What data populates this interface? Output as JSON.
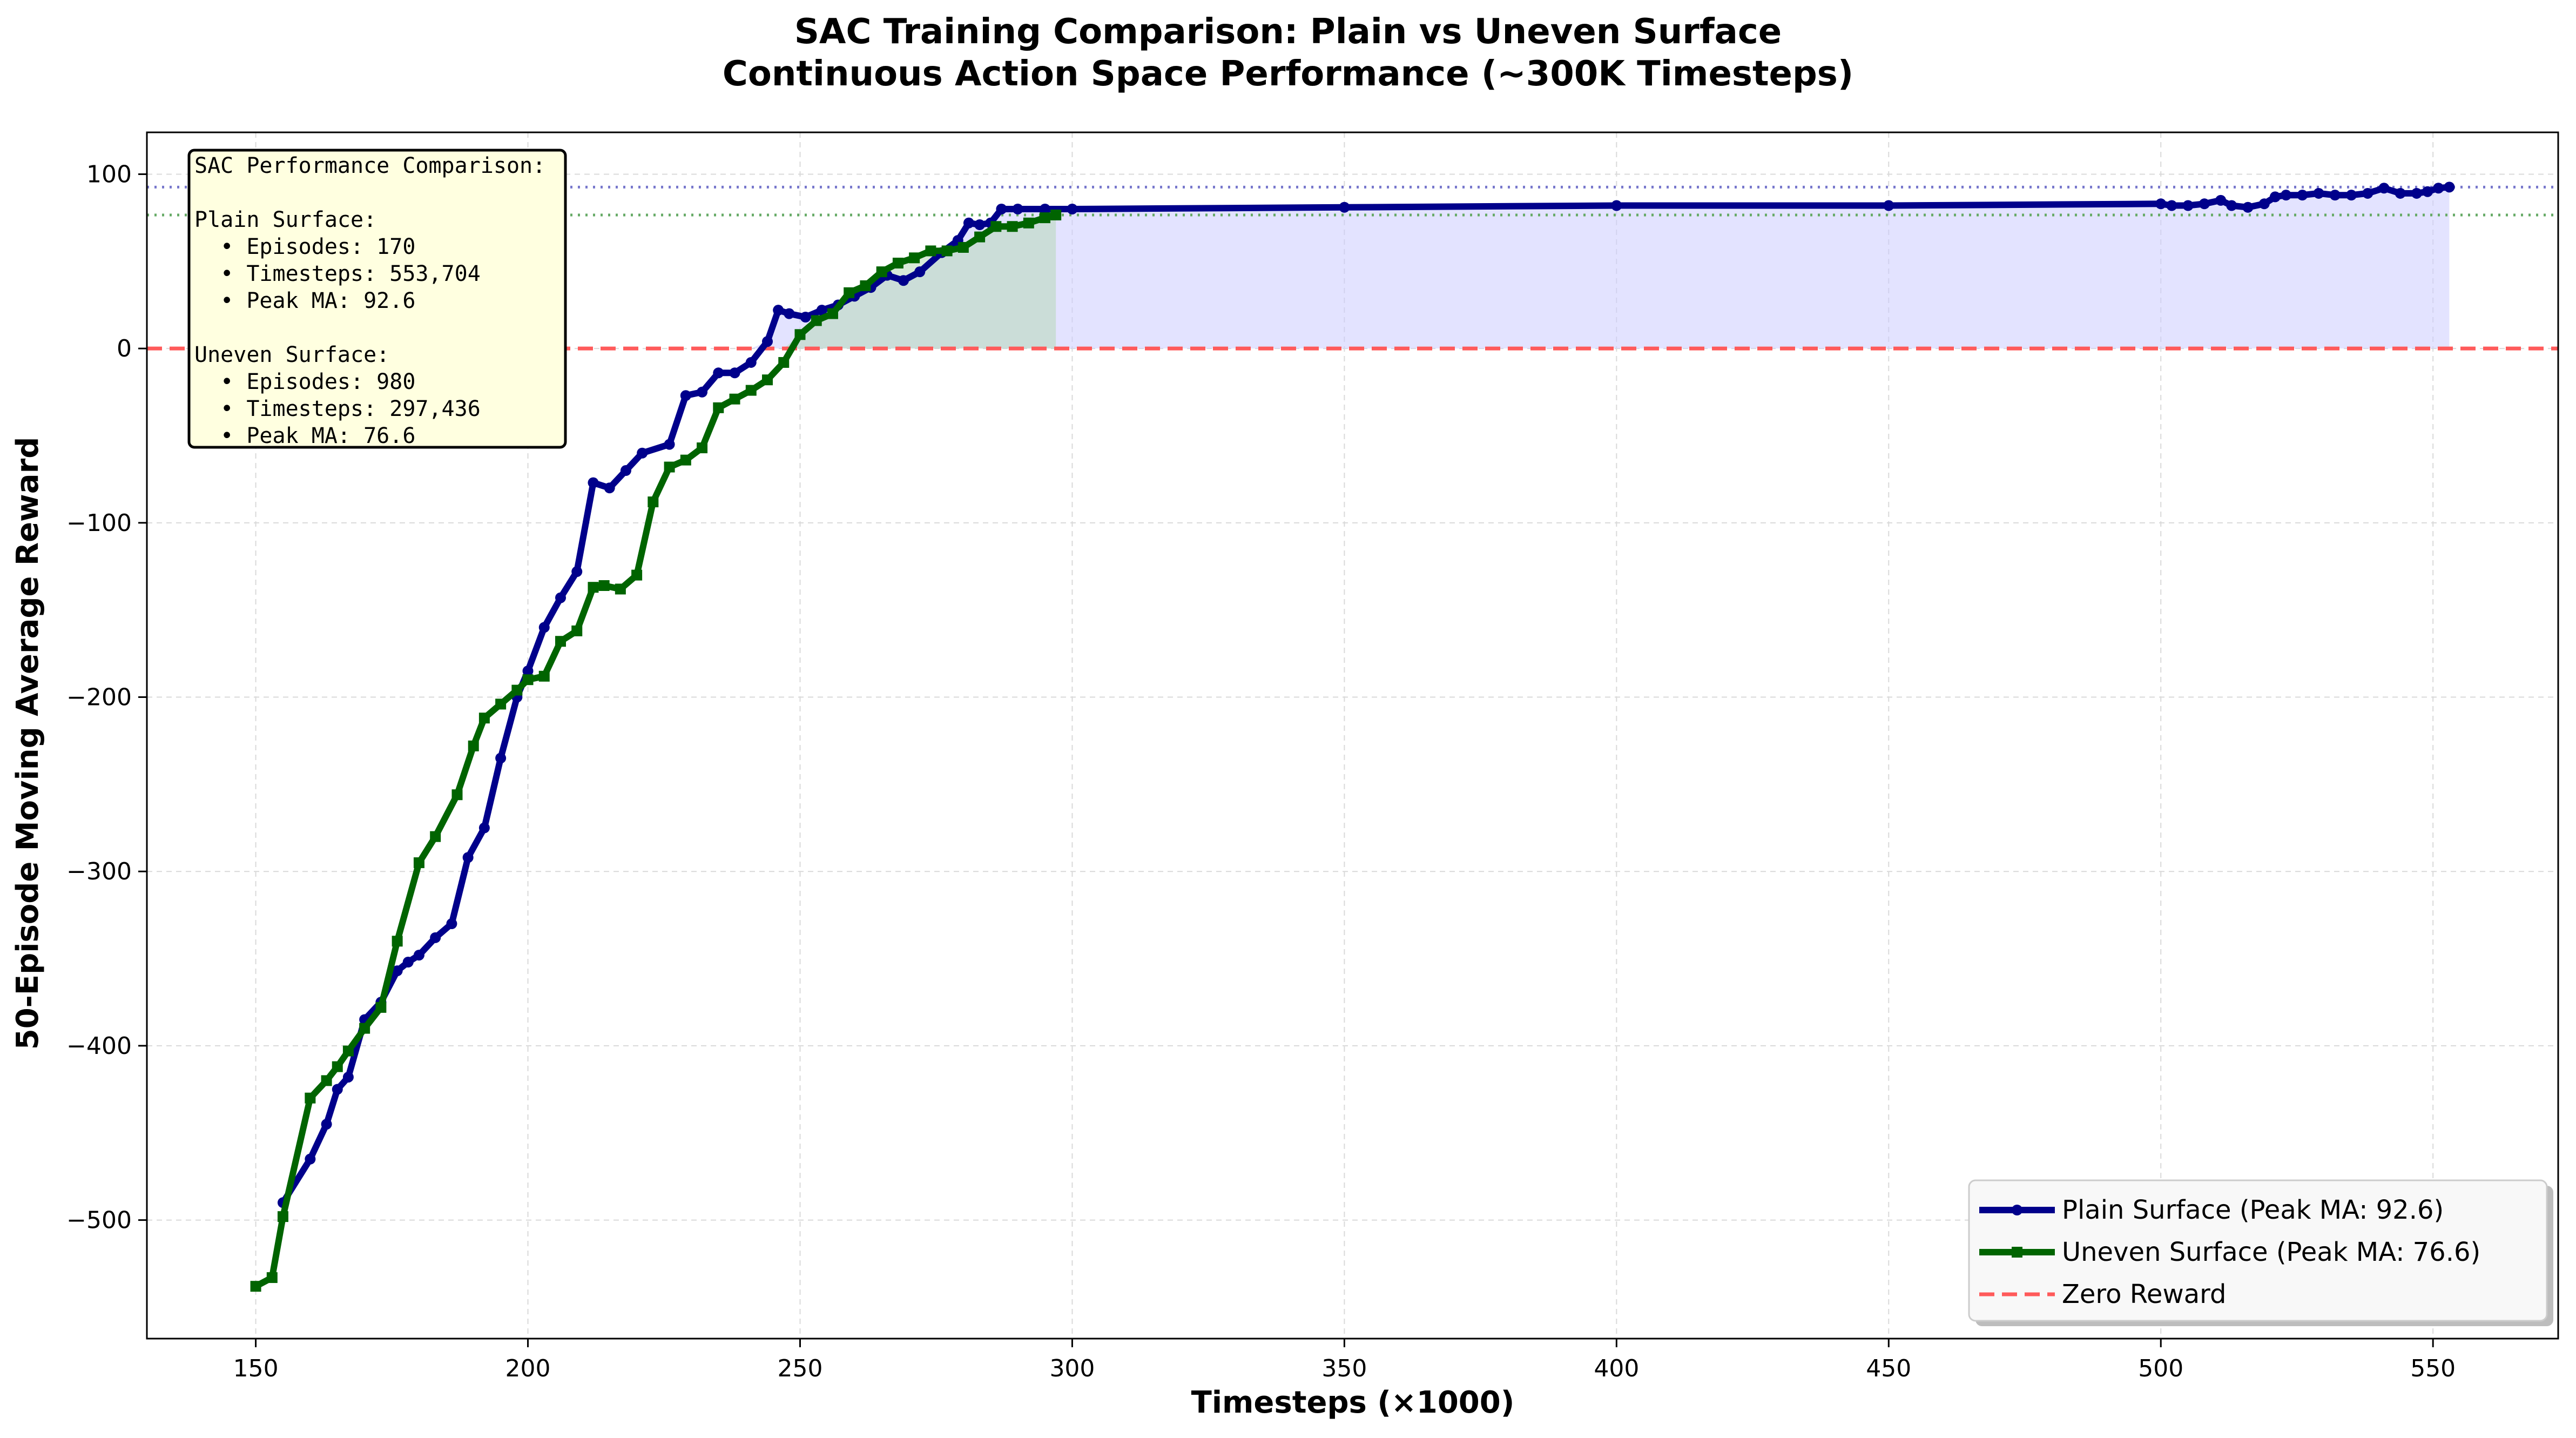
{
  "chart_data": {
    "type": "line",
    "title": "SAC Training Comparison: Plain vs Uneven Surface",
    "subtitle": "Continuous Action Space Performance (~300K Timesteps)",
    "xlabel": "Timesteps (×1000)",
    "ylabel": "50-Episode Moving Average Reward",
    "xlim": [
      130,
      573
    ],
    "ylim": [
      -568,
      124
    ],
    "xticks": [
      150,
      200,
      250,
      300,
      350,
      400,
      450,
      500,
      550
    ],
    "yticks": [
      -500,
      -400,
      -300,
      -200,
      -100,
      0,
      100
    ],
    "grid": true,
    "legend_position": "bottom-right",
    "colors": {
      "plain": "#00008b",
      "uneven": "#006400",
      "zero": "#ff5a5a",
      "plain_fill": "#ccccff",
      "uneven_fill": "#b8d8b8",
      "plain_peak_line": "#7777cc",
      "uneven_peak_line": "#66aa66",
      "info_box_bg": "#ffffe0"
    },
    "zero_reward_label": "Zero Reward",
    "series": [
      {
        "name": "Plain Surface (Peak MA: 92.6)",
        "key": "plain",
        "marker": "circle",
        "peak": 92.6,
        "x": [
          155,
          160,
          163,
          165,
          167,
          170,
          173,
          176,
          178,
          180,
          183,
          186,
          189,
          192,
          195,
          198,
          200,
          203,
          206,
          209,
          212,
          215,
          218,
          221,
          226,
          229,
          232,
          235,
          238,
          241,
          244,
          246,
          248,
          251,
          254,
          257,
          260,
          263,
          266,
          269,
          272,
          276,
          279,
          281,
          283,
          285,
          287,
          290,
          295,
          300,
          350,
          400,
          450,
          500,
          502,
          505,
          508,
          511,
          513,
          516,
          519,
          521,
          523,
          526,
          529,
          532,
          535,
          538,
          541,
          544,
          547,
          549,
          551,
          553
        ],
        "y": [
          -490,
          -465,
          -445,
          -425,
          -418,
          -385,
          -375,
          -357,
          -352,
          -348,
          -338,
          -330,
          -292,
          -275,
          -235,
          -200,
          -185,
          -160,
          -143,
          -128,
          -77,
          -80,
          -70,
          -60,
          -55,
          -27,
          -25,
          -14,
          -14,
          -8,
          4,
          22,
          20,
          18,
          22,
          25,
          30,
          35,
          42,
          39,
          44,
          55,
          62,
          72,
          71,
          72,
          80,
          80,
          80,
          80,
          81,
          82,
          82,
          83,
          82,
          82,
          83,
          85,
          82,
          81,
          83,
          87,
          88,
          88,
          89,
          88,
          88,
          89,
          92,
          89,
          89,
          90,
          92,
          92.6
        ]
      },
      {
        "name": "Uneven Surface (Peak MA: 76.6)",
        "key": "uneven",
        "marker": "square",
        "peak": 76.6,
        "x": [
          150,
          153,
          155,
          160,
          163,
          165,
          167,
          170,
          173,
          176,
          180,
          183,
          187,
          190,
          192,
          195,
          198,
          200,
          203,
          206,
          209,
          212,
          214,
          217,
          220,
          223,
          226,
          229,
          232,
          235,
          238,
          241,
          244,
          247,
          250,
          253,
          256,
          259,
          262,
          265,
          268,
          271,
          274,
          277,
          280,
          283,
          286,
          289,
          292,
          295,
          297
        ],
        "y": [
          -538,
          -533,
          -498,
          -430,
          -420,
          -412,
          -403,
          -390,
          -378,
          -340,
          -295,
          -280,
          -256,
          -228,
          -212,
          -204,
          -196,
          -190,
          -188,
          -168,
          -162,
          -137,
          -136,
          -138,
          -130,
          -88,
          -68,
          -64,
          -57,
          -34,
          -29,
          -24,
          -18,
          -8,
          8,
          16,
          20,
          32,
          36,
          44,
          49,
          52,
          56,
          56,
          58,
          64,
          70,
          70,
          72,
          75,
          76.6
        ]
      }
    ],
    "info_box": {
      "header": "SAC Performance Comparison:",
      "plain_heading": "Plain Surface:",
      "plain_lines": [
        "  • Episodes: 170",
        "  • Timesteps: 553,704",
        "  • Peak MA: 92.6"
      ],
      "uneven_heading": "Uneven Surface:",
      "uneven_lines": [
        "  • Episodes: 980",
        "  • Timesteps: 297,436",
        "  • Peak MA: 76.6"
      ]
    }
  }
}
